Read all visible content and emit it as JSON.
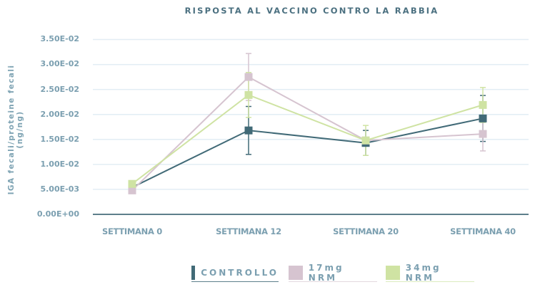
{
  "chart_data": {
    "type": "line",
    "title": "RISPOSTA AL VACCINO CONTRO LA RABBIA",
    "xlabel": "",
    "ylabel": "IGA fecali/proteine fecali (ng/ng)",
    "categories": [
      "SETTIMANA 0",
      "SETTIMANA 12",
      "SETTIMANA 20",
      "SETTIMANA 40"
    ],
    "ylim": [
      0,
      0.035
    ],
    "yticks": [
      "0.00E+00",
      "5.00E-03",
      "1.00E-02",
      "1.50E-02",
      "2.00E-02",
      "2.50E-02",
      "3.00E-02",
      "3.50E-02"
    ],
    "grid": true,
    "legend_position": "bottom",
    "series": [
      {
        "name": "CONTROLLO",
        "color": "#416a77",
        "values": [
          0.0054,
          0.0168,
          0.0143,
          0.0192
        ],
        "error": [
          0.0,
          0.0048,
          0.0025,
          0.0046
        ]
      },
      {
        "name": "17mg NRM",
        "color": "#d6c4d0",
        "values": [
          0.0048,
          0.0275,
          0.0148,
          0.0161
        ],
        "error": [
          0.0,
          0.0047,
          0.0,
          0.0034
        ]
      },
      {
        "name": "34mg NRM",
        "color": "#cfe3a3",
        "values": [
          0.0061,
          0.0239,
          0.0148,
          0.0219
        ],
        "error": [
          0.0,
          0.0045,
          0.003,
          0.0035
        ]
      }
    ]
  },
  "colors": {
    "title": "#4b7080",
    "axis": "#5d7f8b",
    "grid": "#e2edf4",
    "tick_text": "#7b9fb0"
  }
}
